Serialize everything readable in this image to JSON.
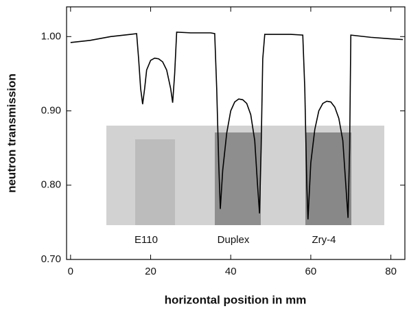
{
  "chart_data": {
    "type": "line",
    "xlabel": "horizontal position in mm",
    "ylabel": "neutron transmission",
    "xlim": [
      -1,
      83.5
    ],
    "xticks": [
      0,
      20,
      40,
      60,
      80
    ],
    "ylim": [
      0.7,
      1.04
    ],
    "yticks": [
      {
        "value": 0.7,
        "label": "0.70"
      },
      {
        "value": 0.8,
        "label": "0.80"
      },
      {
        "value": 0.9,
        "label": "0.90"
      },
      {
        "value": 1,
        "label": "1.00"
      }
    ],
    "annotations": [
      "E110",
      "Duplex",
      "Zry-4"
    ],
    "series": [
      {
        "color": "#000000",
        "x": [
          0,
          5,
          10,
          15,
          16.5,
          17,
          17.5,
          18,
          18.5,
          19,
          20,
          21,
          22,
          23,
          24,
          25,
          25.5,
          26,
          26.5,
          30,
          35,
          36,
          36.5,
          37,
          37.4,
          38,
          39,
          40,
          41,
          42,
          43,
          44,
          45,
          46,
          46.7,
          47.2,
          47.6,
          48,
          48.5,
          55,
          58,
          58.5,
          59,
          59.3,
          60,
          61,
          62,
          63,
          64,
          65,
          66,
          67,
          68,
          69,
          69.3,
          69.7,
          70,
          75,
          80,
          83
        ],
        "values": [
          0.992,
          0.995,
          1.0,
          1.003,
          1.004,
          0.97,
          0.93,
          0.909,
          0.93,
          0.955,
          0.968,
          0.971,
          0.97,
          0.966,
          0.955,
          0.93,
          0.911,
          0.95,
          1.006,
          1.005,
          1.005,
          1.004,
          0.93,
          0.83,
          0.768,
          0.82,
          0.87,
          0.9,
          0.912,
          0.916,
          0.915,
          0.91,
          0.895,
          0.86,
          0.8,
          0.762,
          0.85,
          0.97,
          1.003,
          1.003,
          1.002,
          0.93,
          0.8,
          0.754,
          0.83,
          0.875,
          0.9,
          0.91,
          0.913,
          0.912,
          0.905,
          0.89,
          0.86,
          0.78,
          0.756,
          0.85,
          1.002,
          0.999,
          0.997,
          0.996
        ]
      }
    ]
  }
}
